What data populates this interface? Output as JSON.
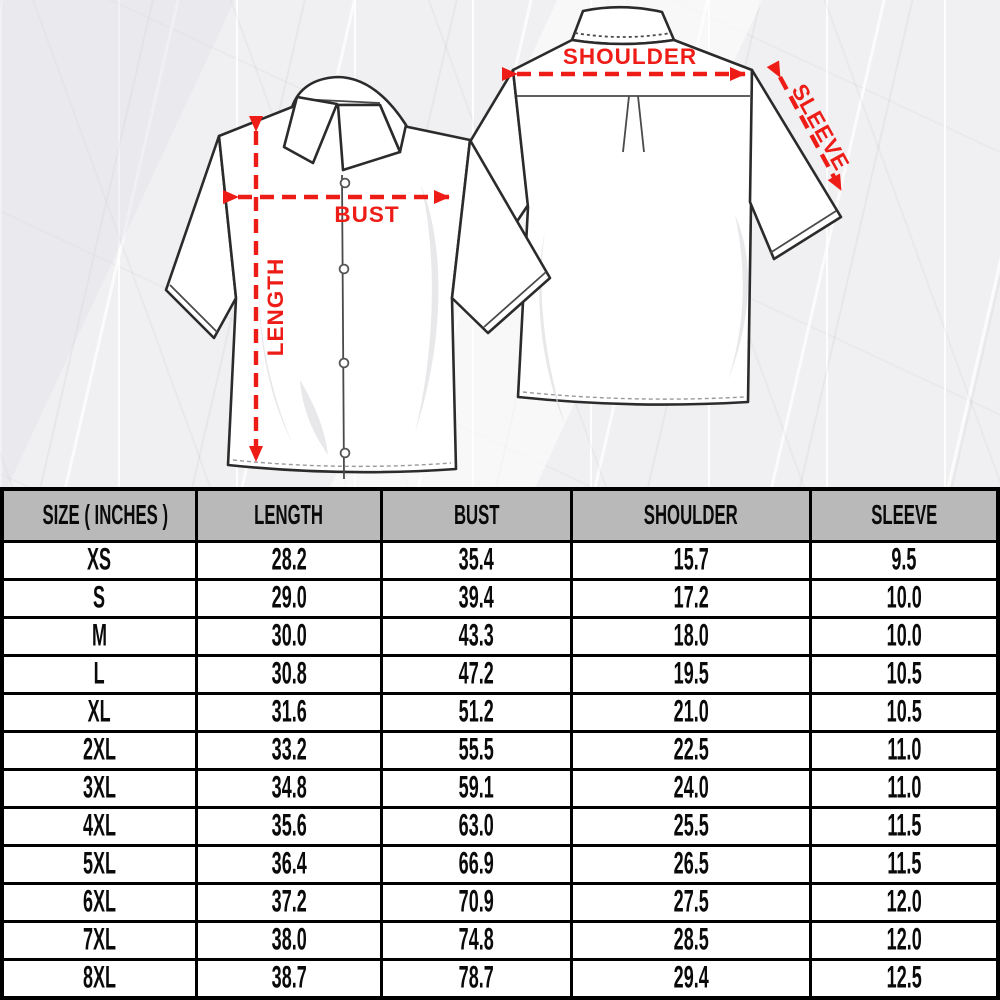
{
  "diagram": {
    "accent_color": "#ee1c16",
    "front_shirt": {
      "view": "front",
      "labels": {
        "bust": "BUST",
        "length": "LENGTH"
      }
    },
    "back_shirt": {
      "view": "back",
      "labels": {
        "shoulder": "SHOULDER",
        "sleeve": "SLEEVE"
      }
    }
  },
  "table": {
    "header_bg": "#b9b9b9",
    "border_color": "#000000",
    "columns": [
      "SIZE ( INCHES )",
      "LENGTH",
      "BUST",
      "SHOULDER",
      "SLEEVE"
    ],
    "rows": [
      {
        "size": "XS",
        "length": "28.2",
        "bust": "35.4",
        "shoulder": "15.7",
        "sleeve": "9.5"
      },
      {
        "size": "S",
        "length": "29.0",
        "bust": "39.4",
        "shoulder": "17.2",
        "sleeve": "10.0"
      },
      {
        "size": "M",
        "length": "30.0",
        "bust": "43.3",
        "shoulder": "18.0",
        "sleeve": "10.0"
      },
      {
        "size": "L",
        "length": "30.8",
        "bust": "47.2",
        "shoulder": "19.5",
        "sleeve": "10.5"
      },
      {
        "size": "XL",
        "length": "31.6",
        "bust": "51.2",
        "shoulder": "21.0",
        "sleeve": "10.5"
      },
      {
        "size": "2XL",
        "length": "33.2",
        "bust": "55.5",
        "shoulder": "22.5",
        "sleeve": "11.0"
      },
      {
        "size": "3XL",
        "length": "34.8",
        "bust": "59.1",
        "shoulder": "24.0",
        "sleeve": "11.0"
      },
      {
        "size": "4XL",
        "length": "35.6",
        "bust": "63.0",
        "shoulder": "25.5",
        "sleeve": "11.5"
      },
      {
        "size": "5XL",
        "length": "36.4",
        "bust": "66.9",
        "shoulder": "26.5",
        "sleeve": "11.5"
      },
      {
        "size": "6XL",
        "length": "37.2",
        "bust": "70.9",
        "shoulder": "27.5",
        "sleeve": "12.0"
      },
      {
        "size": "7XL",
        "length": "38.0",
        "bust": "74.8",
        "shoulder": "28.5",
        "sleeve": "12.0"
      },
      {
        "size": "8XL",
        "length": "38.7",
        "bust": "78.7",
        "shoulder": "29.4",
        "sleeve": "12.5"
      }
    ]
  }
}
